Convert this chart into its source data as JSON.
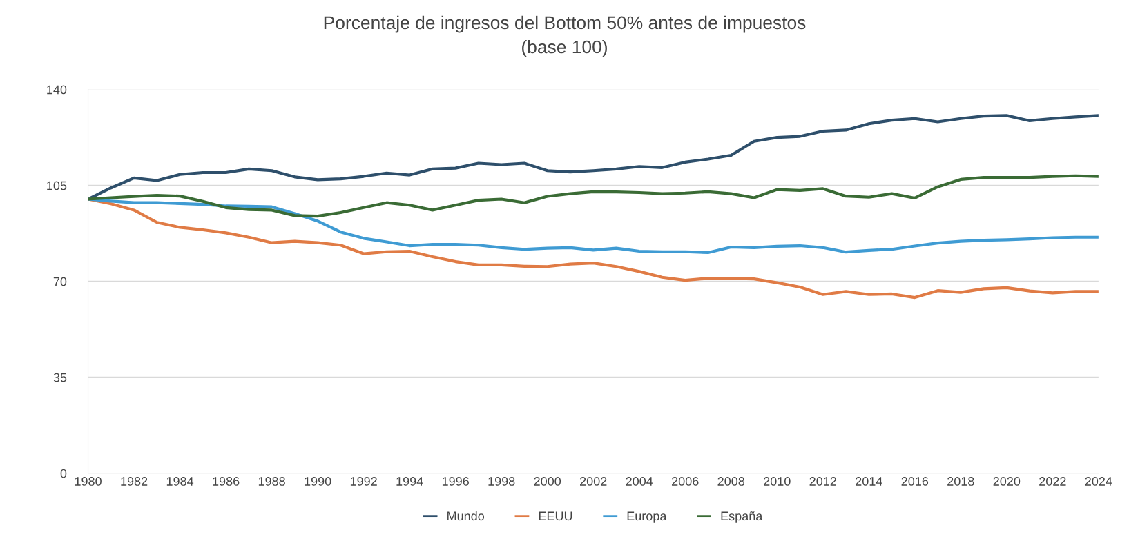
{
  "chart_data": {
    "type": "line",
    "title": "Porcentaje de ingresos del Bottom 50% antes de impuestos",
    "subtitle": "(base 100)",
    "x": [
      1980,
      1981,
      1982,
      1983,
      1984,
      1985,
      1986,
      1987,
      1988,
      1989,
      1990,
      1991,
      1992,
      1993,
      1994,
      1995,
      1996,
      1997,
      1998,
      1999,
      2000,
      2001,
      2002,
      2003,
      2004,
      2005,
      2006,
      2007,
      2008,
      2009,
      2010,
      2011,
      2012,
      2013,
      2014,
      2015,
      2016,
      2017,
      2018,
      2019,
      2020,
      2021,
      2022,
      2023,
      2024
    ],
    "series": [
      {
        "name": "Mundo",
        "color": "#2e4f6b",
        "values": [
          100,
          104.1,
          107.7,
          106.8,
          109.0,
          109.7,
          109.7,
          111.0,
          110.4,
          108.1,
          107.1,
          107.4,
          108.3,
          109.5,
          108.8,
          111.0,
          111.3,
          113.1,
          112.6,
          113.1,
          110.4,
          109.9,
          110.4,
          111.0,
          111.9,
          111.5,
          113.5,
          114.6,
          116.0,
          121.1,
          122.5,
          122.9,
          124.8,
          125.2,
          127.5,
          128.8,
          129.4,
          128.2,
          129.4,
          130.3,
          130.5,
          128.6,
          129.4,
          130.0,
          130.5
        ]
      },
      {
        "name": "EEUU",
        "color": "#e07b45",
        "values": [
          100,
          98.3,
          96.0,
          91.5,
          89.7,
          88.8,
          87.7,
          86.1,
          84.1,
          84.6,
          84.1,
          83.2,
          80.1,
          80.8,
          81.0,
          79.0,
          77.2,
          76.0,
          76.0,
          75.5,
          75.4,
          76.3,
          76.7,
          75.4,
          73.6,
          71.5,
          70.4,
          71.1,
          71.1,
          70.9,
          69.5,
          67.9,
          65.2,
          66.3,
          65.2,
          65.4,
          64.1,
          66.6,
          66.0,
          67.3,
          67.7,
          66.5,
          65.8,
          66.3,
          66.3
        ]
      },
      {
        "name": "Europa",
        "color": "#3f9bd3",
        "values": [
          100,
          99.3,
          98.7,
          98.7,
          98.4,
          98.1,
          97.5,
          97.4,
          97.2,
          94.7,
          92.0,
          88.0,
          85.7,
          84.4,
          83.0,
          83.5,
          83.5,
          83.2,
          82.3,
          81.7,
          82.1,
          82.3,
          81.4,
          82.1,
          81.0,
          80.8,
          80.8,
          80.5,
          82.5,
          82.3,
          82.8,
          83.0,
          82.3,
          80.7,
          81.3,
          81.7,
          82.9,
          84.0,
          84.6,
          85.0,
          85.2,
          85.5,
          85.9,
          86.1,
          86.1
        ]
      },
      {
        "name": "España",
        "color": "#3a6b35",
        "values": [
          100,
          100.5,
          101.0,
          101.4,
          101.1,
          99.2,
          96.9,
          96.2,
          96.0,
          94.0,
          93.8,
          95.1,
          96.9,
          98.7,
          97.8,
          96.0,
          97.8,
          99.6,
          100.0,
          98.7,
          101.0,
          102.0,
          102.7,
          102.6,
          102.4,
          102.0,
          102.2,
          102.7,
          102.0,
          100.5,
          103.5,
          103.2,
          103.8,
          101.1,
          100.7,
          102.0,
          100.4,
          104.5,
          107.2,
          107.9,
          107.9,
          107.9,
          108.3,
          108.5,
          108.3
        ]
      }
    ],
    "xlim": [
      1980,
      2024
    ],
    "xticks": [
      1980,
      1982,
      1984,
      1986,
      1988,
      1990,
      1992,
      1994,
      1996,
      1998,
      2000,
      2002,
      2004,
      2006,
      2008,
      2010,
      2012,
      2014,
      2016,
      2018,
      2020,
      2022,
      2024
    ],
    "ylim": [
      0,
      140
    ],
    "yticks": [
      0,
      35,
      70,
      105,
      140
    ],
    "grid": "y",
    "legend": "bottom",
    "line_style": "solid"
  }
}
